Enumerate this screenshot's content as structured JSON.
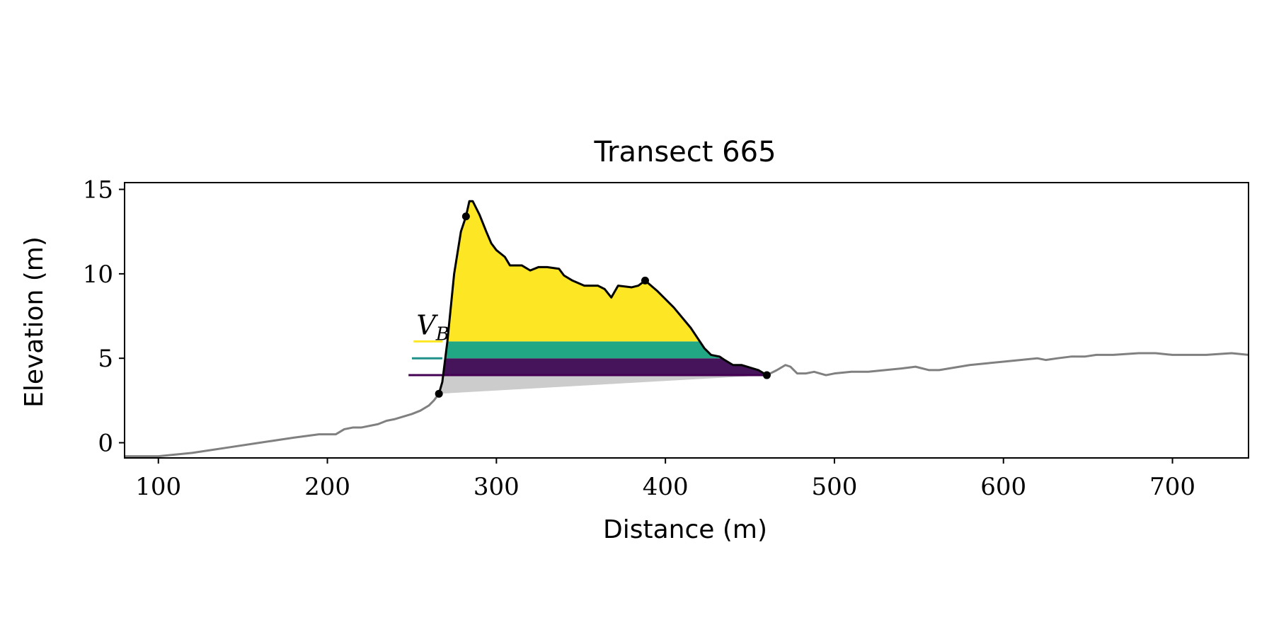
{
  "chart_data": {
    "type": "area",
    "title": "Transect 665",
    "xlabel": "Distance (m)",
    "ylabel": "Elevation (m)",
    "xlim": [
      80,
      745
    ],
    "ylim": [
      -0.9,
      15.4
    ],
    "xticks": [
      100,
      200,
      300,
      400,
      500,
      600,
      700
    ],
    "yticks": [
      0,
      5,
      10,
      15
    ],
    "grid": false,
    "legend": "none",
    "annotation": "V_B",
    "colors": {
      "profile": "#808080",
      "dune": "#000000",
      "base_fill": "#cccccc",
      "band_low": "#45145a",
      "band_mid": "#22a784",
      "band_high": "#fde725",
      "marker_low": "#440154",
      "marker_mid": "#21918c",
      "marker_high": "#fde725"
    },
    "profile": {
      "x": [
        80,
        100,
        120,
        140,
        160,
        180,
        195,
        205,
        210,
        215,
        220,
        230,
        235,
        240,
        250,
        255,
        260,
        263,
        266
      ],
      "y": [
        -0.8,
        -0.8,
        -0.6,
        -0.3,
        0.0,
        0.3,
        0.5,
        0.5,
        0.8,
        0.9,
        0.9,
        1.1,
        1.3,
        1.4,
        1.7,
        1.9,
        2.2,
        2.5,
        2.9
      ]
    },
    "backshore": {
      "x": [
        460,
        466,
        471,
        474,
        478,
        483,
        488,
        495,
        500,
        510,
        520,
        530,
        540,
        548,
        556,
        562,
        568,
        580,
        590,
        600,
        610,
        620,
        625,
        632,
        640,
        648,
        655,
        665,
        680,
        690,
        700,
        720,
        735,
        745
      ],
      "y": [
        4.0,
        4.3,
        4.6,
        4.5,
        4.1,
        4.1,
        4.2,
        4.0,
        4.1,
        4.2,
        4.2,
        4.3,
        4.4,
        4.5,
        4.3,
        4.3,
        4.4,
        4.6,
        4.7,
        4.8,
        4.9,
        5.0,
        4.9,
        5.0,
        5.1,
        5.1,
        5.2,
        5.2,
        5.3,
        5.3,
        5.2,
        5.2,
        5.3,
        5.2
      ]
    },
    "dune": {
      "x": [
        266,
        268,
        271,
        275,
        279,
        282,
        284,
        286,
        290,
        294,
        297,
        300,
        305,
        308,
        315,
        320,
        325,
        330,
        337,
        340,
        345,
        352,
        360,
        364,
        368,
        372,
        380,
        384,
        388,
        395,
        405,
        415,
        419,
        423,
        427,
        432,
        435,
        440,
        445,
        455,
        460
      ],
      "y": [
        2.9,
        3.6,
        6.0,
        10.0,
        12.5,
        13.4,
        14.3,
        14.3,
        13.5,
        12.5,
        11.8,
        11.4,
        11.0,
        10.5,
        10.5,
        10.2,
        10.4,
        10.4,
        10.3,
        9.9,
        9.6,
        9.3,
        9.3,
        9.1,
        8.6,
        9.3,
        9.2,
        9.3,
        9.6,
        9.0,
        8.0,
        6.8,
        6.2,
        5.6,
        5.2,
        5.1,
        4.9,
        4.6,
        4.6,
        4.3,
        4.0
      ]
    },
    "points": {
      "x": [
        266,
        282,
        388,
        460
      ],
      "y": [
        2.9,
        13.4,
        9.6,
        4.0
      ]
    },
    "levels": [
      4.0,
      5.0,
      6.0
    ],
    "level_markers": {
      "x_start": [
        248,
        250,
        251
      ],
      "x_end": [
        268,
        268,
        268
      ]
    },
    "baseline": {
      "x": [
        266,
        460
      ],
      "y": [
        2.9,
        4.0
      ]
    }
  }
}
